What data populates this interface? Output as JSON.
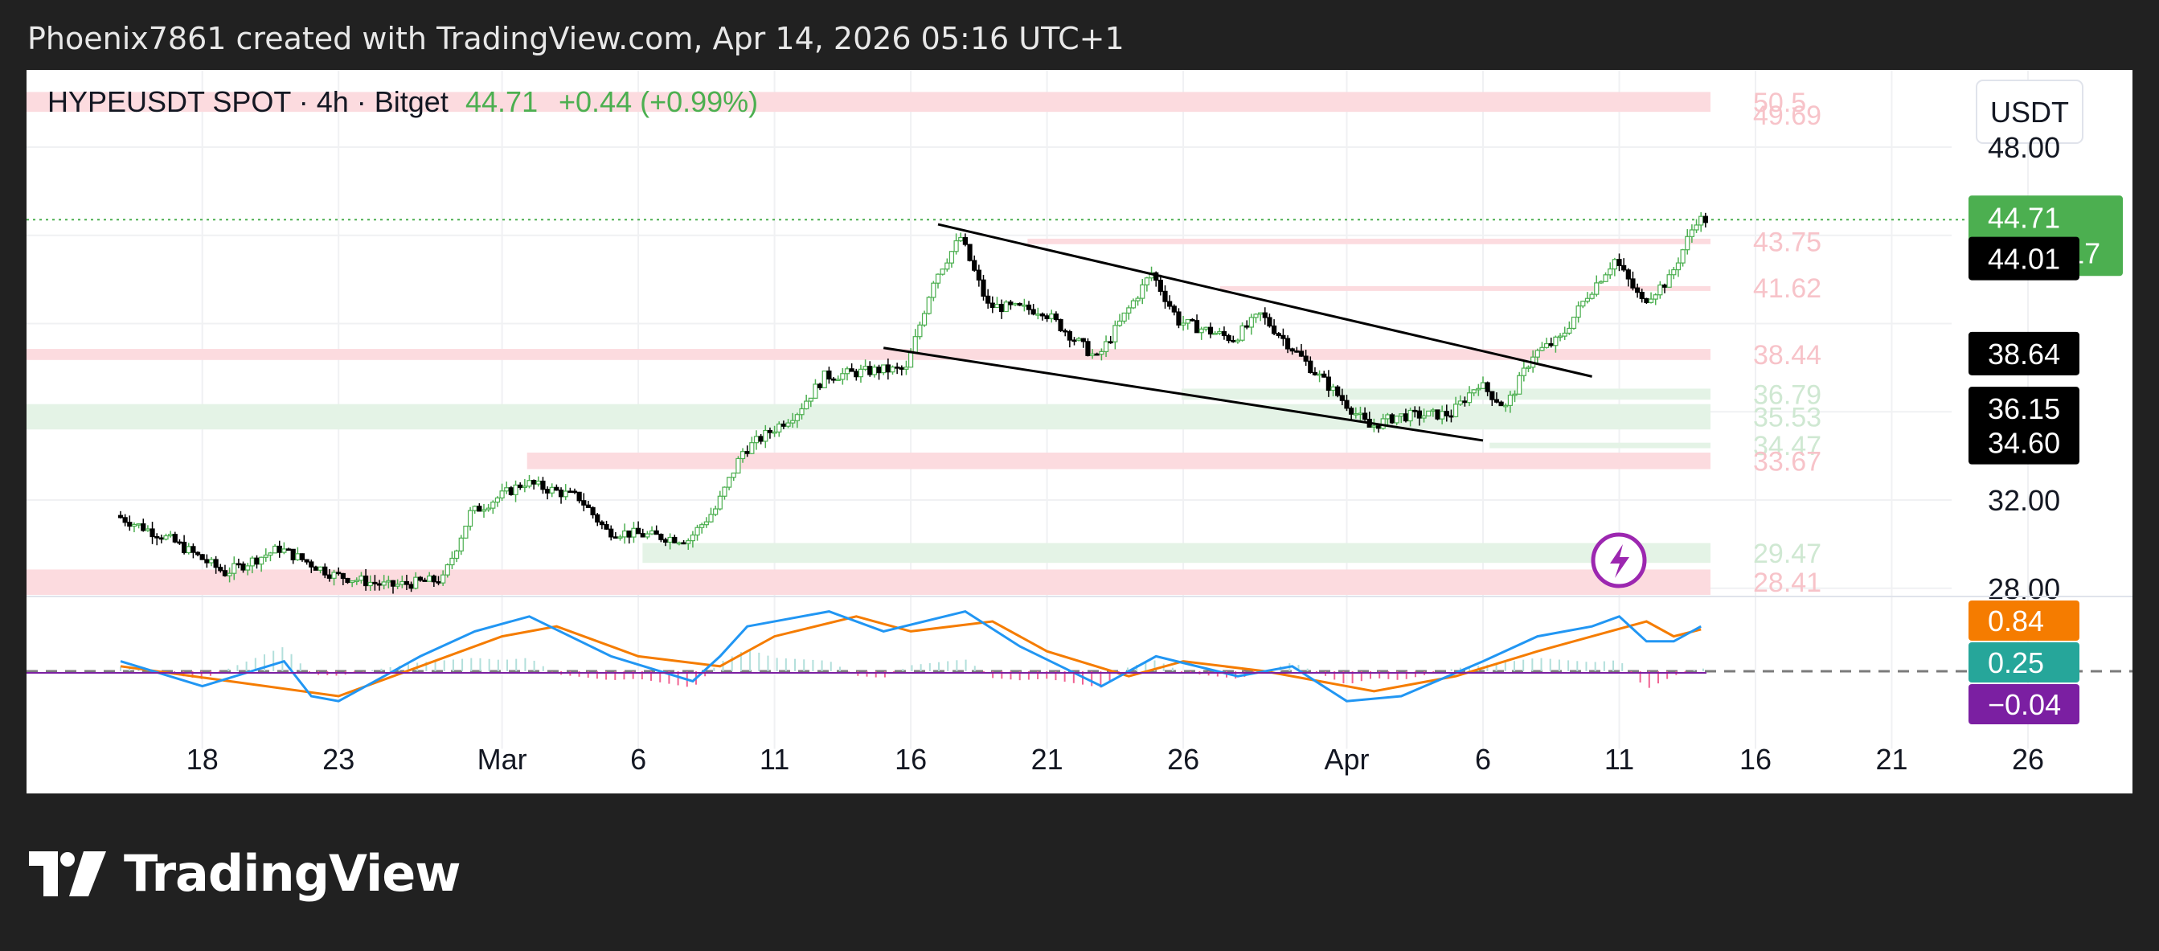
{
  "header": {
    "attribution": "Phoenix7861 created with TradingView.com, Apr 14, 2026 05:16 UTC+1"
  },
  "brand": {
    "name": "TradingView"
  },
  "chart_data": {
    "type": "candlestick",
    "symbol": {
      "title": "HYPEUSDT SPOT · 4h · Bitget",
      "last": "44.71",
      "change": "+0.44 (+0.99%)"
    },
    "currency": "USDT",
    "x_ticks": [
      "18",
      "23",
      "Mar",
      "6",
      "11",
      "16",
      "21",
      "26",
      "Apr",
      "6",
      "11",
      "16",
      "21",
      "26"
    ],
    "price_axis": {
      "range": [
        27.7,
        51.5
      ],
      "tick_labels": [
        "48.00",
        "32.00",
        "28.00"
      ]
    },
    "zones": [
      {
        "kind": "resistance",
        "low": 49.6,
        "high": 50.5,
        "labels": [
          "50.5",
          "49.69"
        ],
        "from": 0.0
      },
      {
        "kind": "resistance",
        "low": 43.6,
        "high": 43.85,
        "labels": [
          "43.75"
        ],
        "from": 0.52
      },
      {
        "kind": "resistance",
        "low": 41.55,
        "high": 41.7,
        "labels": [
          "41.62"
        ],
        "from": 0.62
      },
      {
        "kind": "resistance",
        "low": 38.35,
        "high": 38.85,
        "labels": [
          "38.44"
        ],
        "from": 0.0
      },
      {
        "kind": "support",
        "low": 36.55,
        "high": 37.05,
        "labels": [
          "36.79"
        ],
        "from": 0.6
      },
      {
        "kind": "support",
        "low": 35.2,
        "high": 36.35,
        "labels": [
          "35.53"
        ],
        "from": 0.0
      },
      {
        "kind": "support",
        "low": 34.35,
        "high": 34.6,
        "labels": [
          "34.47"
        ],
        "from": 0.76
      },
      {
        "kind": "resistance",
        "low": 33.4,
        "high": 34.15,
        "labels": [
          "33.67"
        ],
        "from": 0.26
      },
      {
        "kind": "support",
        "low": 29.15,
        "high": 30.05,
        "labels": [
          "29.47"
        ],
        "from": 0.32
      },
      {
        "kind": "resistance",
        "low": 27.7,
        "high": 28.85,
        "labels": [
          "28.41"
        ],
        "from": 0.0
      }
    ],
    "trendlines": [
      {
        "from": [
          "Mar 17",
          44.5
        ],
        "to": [
          "Apr 10",
          37.6
        ]
      },
      {
        "from": [
          "Mar 15",
          38.9
        ],
        "to": [
          "Apr 6",
          34.7
        ]
      }
    ],
    "price_path": [
      [
        "Feb 15",
        31.3
      ],
      [
        "Feb 17",
        30.2
      ],
      [
        "Feb 19",
        28.7
      ],
      [
        "Feb 21",
        29.8
      ],
      [
        "Feb 23",
        28.6
      ],
      [
        "Feb 25",
        28.1
      ],
      [
        "Feb 27",
        28.4
      ],
      [
        "Feb 28",
        31.4
      ],
      [
        "Mar 2",
        32.8
      ],
      [
        "Mar 4",
        32.1
      ],
      [
        "Mar 5",
        30.6
      ],
      [
        "Mar 8",
        30.2
      ],
      [
        "Mar 9",
        31.6
      ],
      [
        "Mar 10",
        34.2
      ],
      [
        "Mar 12",
        36.0
      ],
      [
        "Mar 13",
        37.6
      ],
      [
        "Mar 15",
        37.9
      ],
      [
        "Mar 16",
        37.9
      ],
      [
        "Mar 17",
        42.0
      ],
      [
        "Mar 18",
        43.9
      ],
      [
        "Mar 19",
        40.8
      ],
      [
        "Mar 21",
        40.6
      ],
      [
        "Mar 23",
        38.4
      ],
      [
        "Mar 25",
        42.3
      ],
      [
        "Mar 26",
        40.1
      ],
      [
        "Mar 28",
        39.3
      ],
      [
        "Mar 29",
        40.4
      ],
      [
        "Mar 31",
        37.8
      ],
      [
        "Apr 2",
        35.3
      ],
      [
        "Apr 3",
        35.8
      ],
      [
        "Apr 5",
        35.9
      ],
      [
        "Apr 6",
        37.3
      ],
      [
        "Apr 7",
        36.2
      ],
      [
        "Apr 8",
        38.6
      ],
      [
        "Apr 9",
        39.3
      ],
      [
        "Apr 10",
        41.3
      ],
      [
        "Apr 11",
        42.9
      ],
      [
        "Apr 12",
        41.0
      ],
      [
        "Apr 13",
        42.0
      ],
      [
        "Apr 14",
        44.71
      ]
    ],
    "price_badges": [
      {
        "value": "44.71",
        "sub": "03:43:17",
        "color": "#4caf50",
        "price": 44.71
      },
      {
        "value": "44.01",
        "color": "#000000",
        "price": 42.95
      },
      {
        "value": "38.64",
        "color": "#000000",
        "price": 38.64
      },
      {
        "value": "36.15",
        "color": "#000000",
        "price": 36.15
      },
      {
        "value": "34.60",
        "color": "#000000",
        "price": 34.6
      }
    ],
    "indicator": {
      "badges": [
        {
          "value": "0.84",
          "color": "#f57c00"
        },
        {
          "value": "0.25",
          "color": "#26a69a"
        },
        {
          "value": "−0.04",
          "color": "#7b1fa2"
        }
      ],
      "macd_path": [
        [
          "Feb 15",
          0.2
        ],
        [
          "Feb 18",
          -0.3
        ],
        [
          "Feb 21",
          0.2
        ],
        [
          "Feb 22",
          -0.5
        ],
        [
          "Feb 23",
          -0.6
        ],
        [
          "Feb 26",
          0.3
        ],
        [
          "Feb 28",
          0.8
        ],
        [
          "Mar 2",
          1.1
        ],
        [
          "Mar 5",
          0.3
        ],
        [
          "Mar 8",
          -0.2
        ],
        [
          "Mar 9",
          0.3
        ],
        [
          "Mar 10",
          0.9
        ],
        [
          "Mar 13",
          1.2
        ],
        [
          "Mar 15",
          0.8
        ],
        [
          "Mar 18",
          1.2
        ],
        [
          "Mar 20",
          0.5
        ],
        [
          "Mar 23",
          -0.3
        ],
        [
          "Mar 25",
          0.3
        ],
        [
          "Mar 28",
          -0.1
        ],
        [
          "Mar 30",
          0.1
        ],
        [
          "Apr 1",
          -0.6
        ],
        [
          "Apr 3",
          -0.5
        ],
        [
          "Apr 6",
          0.2
        ],
        [
          "Apr 8",
          0.7
        ],
        [
          "Apr 10",
          0.9
        ],
        [
          "Apr 11",
          1.1
        ],
        [
          "Apr 12",
          0.6
        ],
        [
          "Apr 13",
          0.6
        ],
        [
          "Apr 14",
          0.9
        ]
      ],
      "signal_path": [
        [
          "Feb 15",
          0.1
        ],
        [
          "Feb 19",
          -0.2
        ],
        [
          "Feb 23",
          -0.5
        ],
        [
          "Feb 26",
          0.1
        ],
        [
          "Mar 1",
          0.7
        ],
        [
          "Mar 3",
          0.9
        ],
        [
          "Mar 6",
          0.3
        ],
        [
          "Mar 9",
          0.1
        ],
        [
          "Mar 11",
          0.7
        ],
        [
          "Mar 14",
          1.1
        ],
        [
          "Mar 16",
          0.8
        ],
        [
          "Mar 19",
          1.0
        ],
        [
          "Mar 21",
          0.4
        ],
        [
          "Mar 24",
          -0.1
        ],
        [
          "Mar 26",
          0.2
        ],
        [
          "Mar 29",
          0.0
        ],
        [
          "Apr 2",
          -0.4
        ],
        [
          "Apr 5",
          -0.1
        ],
        [
          "Apr 8",
          0.4
        ],
        [
          "Apr 10",
          0.7
        ],
        [
          "Apr 12",
          1.0
        ],
        [
          "Apr 13",
          0.7
        ],
        [
          "Apr 14",
          0.84
        ]
      ]
    }
  }
}
